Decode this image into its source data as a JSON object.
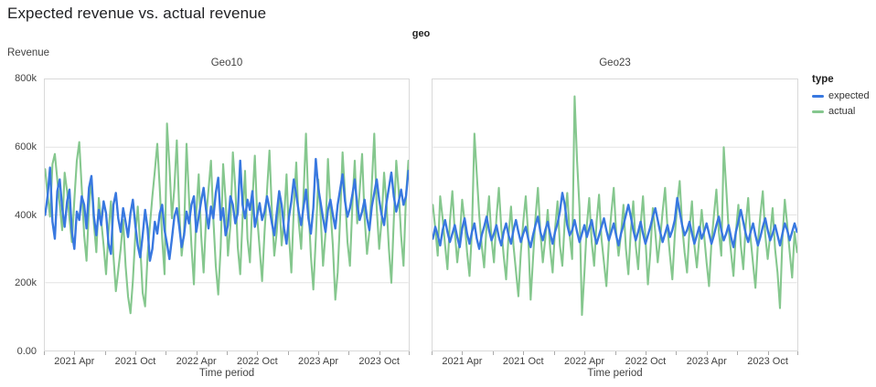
{
  "page": {
    "title": "Expected revenue vs. actual revenue"
  },
  "facet_header_label": "geo",
  "legend": {
    "title": "type",
    "items": [
      {
        "label": "expected",
        "color": "#3878e0"
      },
      {
        "label": "actual",
        "color": "#85c78e"
      }
    ]
  },
  "colors": {
    "expected_line": "#3878e0",
    "actual_line": "#85c78e",
    "grid": "#e4e4e4",
    "plot_border": "#d9d9d9",
    "tick_mark": "#ababab",
    "axis_text": "#424242",
    "title_text": "#202124"
  },
  "chart_data": {
    "type": "line",
    "title": "Expected revenue vs. actual revenue",
    "facet_field": "geo",
    "x": {
      "label": "Time period",
      "domain_months": [
        "2021-01",
        "2024-01"
      ],
      "tick_months": [
        0,
        3,
        6,
        9,
        12,
        15,
        18,
        21,
        24,
        27,
        30,
        33,
        36
      ],
      "labeled_months": [
        3,
        9,
        15,
        21,
        27,
        33
      ],
      "major_tick_labels": [
        "2021 Apr",
        "2021 Oct",
        "2022 Apr",
        "2022 Oct",
        "2023 Apr",
        "2023 Oct"
      ]
    },
    "y": {
      "label": "Revenue",
      "lim": [
        0,
        800
      ],
      "value_unit": "thousand",
      "tick_values": [
        0,
        200,
        400,
        600,
        800
      ],
      "tick_labels": [
        "0.00",
        "200k",
        "400k",
        "600k",
        "800k"
      ],
      "grid": true
    },
    "legend_position": "right",
    "facets": [
      {
        "name": "Geo10",
        "series": [
          {
            "name": "expected",
            "values": [
              400,
              455,
              540,
              380,
              330,
              470,
              505,
              420,
              365,
              440,
              475,
              350,
              300,
              410,
              385,
              455,
              430,
              360,
              480,
              515,
              395,
              340,
              415,
              370,
              440,
              405,
              315,
              285,
              430,
              465,
              390,
              350,
              420,
              380,
              335,
              405,
              445,
              370,
              310,
              275,
              340,
              415,
              360,
              265,
              300,
              380,
              345,
              405,
              430,
              355,
              315,
              270,
              330,
              395,
              420,
              365,
              305,
              340,
              410,
              375,
              430,
              455,
              350,
              395,
              440,
              480,
              415,
              360,
              425,
              390,
              465,
              510,
              385,
              420,
              340,
              370,
              455,
              430,
              375,
              405,
              560,
              430,
              390,
              445,
              415,
              470,
              365,
              400,
              435,
              385,
              410,
              455,
              420,
              375,
              340,
              405,
              470,
              430,
              360,
              315,
              395,
              440,
              505,
              460,
              410,
              370,
              425,
              475,
              390,
              345,
              420,
              565,
              480,
              435,
              390,
              350,
              415,
              445,
              400,
              360,
              430,
              475,
              520,
              440,
              395,
              420,
              460,
              505,
              430,
              385,
              410,
              445,
              390,
              355,
              425,
              465,
              505,
              445,
              400,
              370,
              435,
              480,
              525,
              455,
              410,
              440,
              475,
              430,
              455,
              530
            ]
          },
          {
            "name": "actual",
            "values": [
              535,
              460,
              395,
              550,
              580,
              505,
              430,
              355,
              525,
              470,
              390,
              320,
              445,
              560,
              615,
              480,
              340,
              265,
              420,
              505,
              375,
              290,
              450,
              385,
              310,
              225,
              350,
              440,
              280,
              175,
              235,
              300,
              385,
              250,
              160,
              110,
              205,
              340,
              425,
              310,
              170,
              130,
              280,
              370,
              455,
              530,
              610,
              480,
              330,
              225,
              670,
              545,
              390,
              480,
              620,
              410,
              280,
              350,
              610,
              450,
              310,
              195,
              405,
              520,
              340,
              230,
              390,
              475,
              560,
              390,
              250,
              165,
              305,
              550,
              445,
              280,
              370,
              585,
              480,
              305,
              225,
              390,
              530,
              330,
              260,
              440,
              575,
              390,
              300,
              205,
              350,
              470,
              590,
              410,
              280,
              350,
              455,
              310,
              390,
              520,
              340,
              230,
              420,
              555,
              380,
              300,
              465,
              640,
              430,
              280,
              180,
              330,
              505,
              395,
              250,
              345,
              565,
              420,
              310,
              150,
              230,
              390,
              585,
              460,
              320,
              250,
              430,
              560,
              375,
              470,
              580,
              395,
              285,
              350,
              490,
              640,
              420,
              300,
              385,
              525,
              435,
              300,
              200,
              385,
              560,
              470,
              340,
              250,
              455,
              560
            ]
          }
        ]
      },
      {
        "name": "Geo23",
        "series": [
          {
            "name": "expected",
            "values": [
              330,
              365,
              340,
              310,
              355,
              385,
              350,
              320,
              345,
              370,
              335,
              305,
              360,
              390,
              345,
              315,
              350,
              375,
              330,
              300,
              340,
              365,
              395,
              355,
              325,
              345,
              370,
              335,
              310,
              350,
              375,
              340,
              315,
              355,
              385,
              350,
              320,
              345,
              365,
              330,
              305,
              340,
              370,
              395,
              350,
              325,
              355,
              380,
              345,
              315,
              350,
              375,
              410,
              465,
              430,
              370,
              340,
              355,
              385,
              350,
              320,
              345,
              370,
              335,
              360,
              385,
              345,
              315,
              340,
              365,
              390,
              355,
              325,
              350,
              375,
              340,
              310,
              345,
              370,
              400,
              430,
              395,
              355,
              325,
              350,
              380,
              345,
              315,
              340,
              365,
              395,
              420,
              385,
              350,
              320,
              345,
              370,
              335,
              355,
              385,
              450,
              410,
              370,
              340,
              355,
              380,
              345,
              315,
              340,
              365,
              330,
              350,
              375,
              345,
              315,
              340,
              370,
              395,
              355,
              325,
              345,
              370,
              335,
              305,
              350,
              380,
              415,
              380,
              345,
              320,
              350,
              375,
              340,
              310,
              335,
              365,
              390,
              355,
              325,
              345,
              370,
              340,
              310,
              345,
              375,
              355,
              325,
              350,
              375,
              350
            ]
          },
          {
            "name": "actual",
            "values": [
              430,
              360,
              280,
              455,
              390,
              310,
              240,
              380,
              470,
              350,
              260,
              330,
              445,
              380,
              290,
              220,
              355,
              640,
              520,
              400,
              310,
              245,
              370,
              455,
              330,
              260,
              390,
              480,
              360,
              280,
              210,
              340,
              425,
              310,
              235,
              160,
              290,
              380,
              455,
              340,
              150,
              270,
              390,
              480,
              350,
              260,
              330,
              415,
              300,
              230,
              360,
              440,
              310,
              250,
              385,
              465,
              340,
              270,
              750,
              560,
              420,
              105,
              230,
              370,
              450,
              320,
              250,
              380,
              460,
              330,
              260,
              190,
              320,
              405,
              480,
              350,
              280,
              345,
              430,
              300,
              225,
              355,
              440,
              310,
              240,
              370,
              455,
              330,
              195,
              290,
              420,
              350,
              260,
              330,
              410,
              480,
              360,
              280,
              210,
              340,
              430,
              500,
              370,
              290,
              230,
              360,
              440,
              310,
              245,
              330,
              415,
              340,
              260,
              190,
              320,
              400,
              475,
              350,
              280,
              600,
              480,
              360,
              290,
              220,
              350,
              430,
              310,
              240,
              370,
              450,
              330,
              255,
              185,
              315,
              400,
              470,
              340,
              270,
              340,
              420,
              300,
              230,
              125,
              330,
              445,
              370,
              290,
              215,
              350,
              290
            ]
          }
        ]
      }
    ]
  }
}
